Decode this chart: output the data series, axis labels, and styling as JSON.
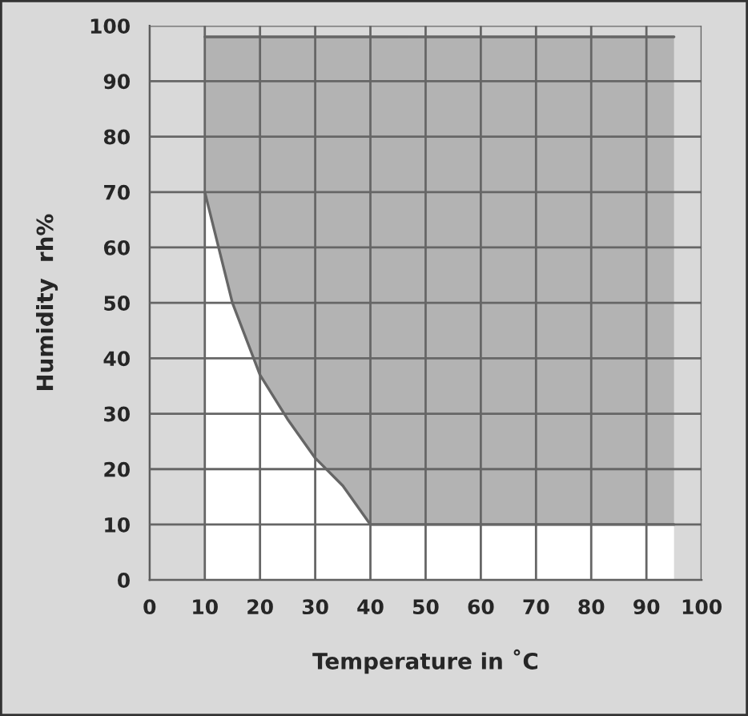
{
  "chart_data": {
    "type": "area",
    "xlabel": "Temperature in ˚C",
    "ylabel": "Humidity  rh%",
    "x": [
      10,
      15,
      20,
      25,
      30,
      35,
      40,
      95
    ],
    "series": [
      {
        "color": "#ffffff",
        "values": [
          70,
          50,
          37,
          29,
          22,
          17,
          10,
          10
        ]
      },
      {
        "color": "#b3b3b3",
        "values": [
          28,
          48,
          61,
          69,
          76,
          81,
          88,
          88
        ]
      }
    ],
    "stacked": true,
    "xlim": [
      0,
      100
    ],
    "ylim": [
      0,
      100
    ],
    "xticks": [
      0,
      10,
      20,
      30,
      40,
      50,
      60,
      70,
      80,
      90,
      100
    ],
    "yticks": [
      0,
      10,
      20,
      30,
      40,
      50,
      60,
      70,
      80,
      90,
      100
    ],
    "grid": true,
    "legend": false
  }
}
